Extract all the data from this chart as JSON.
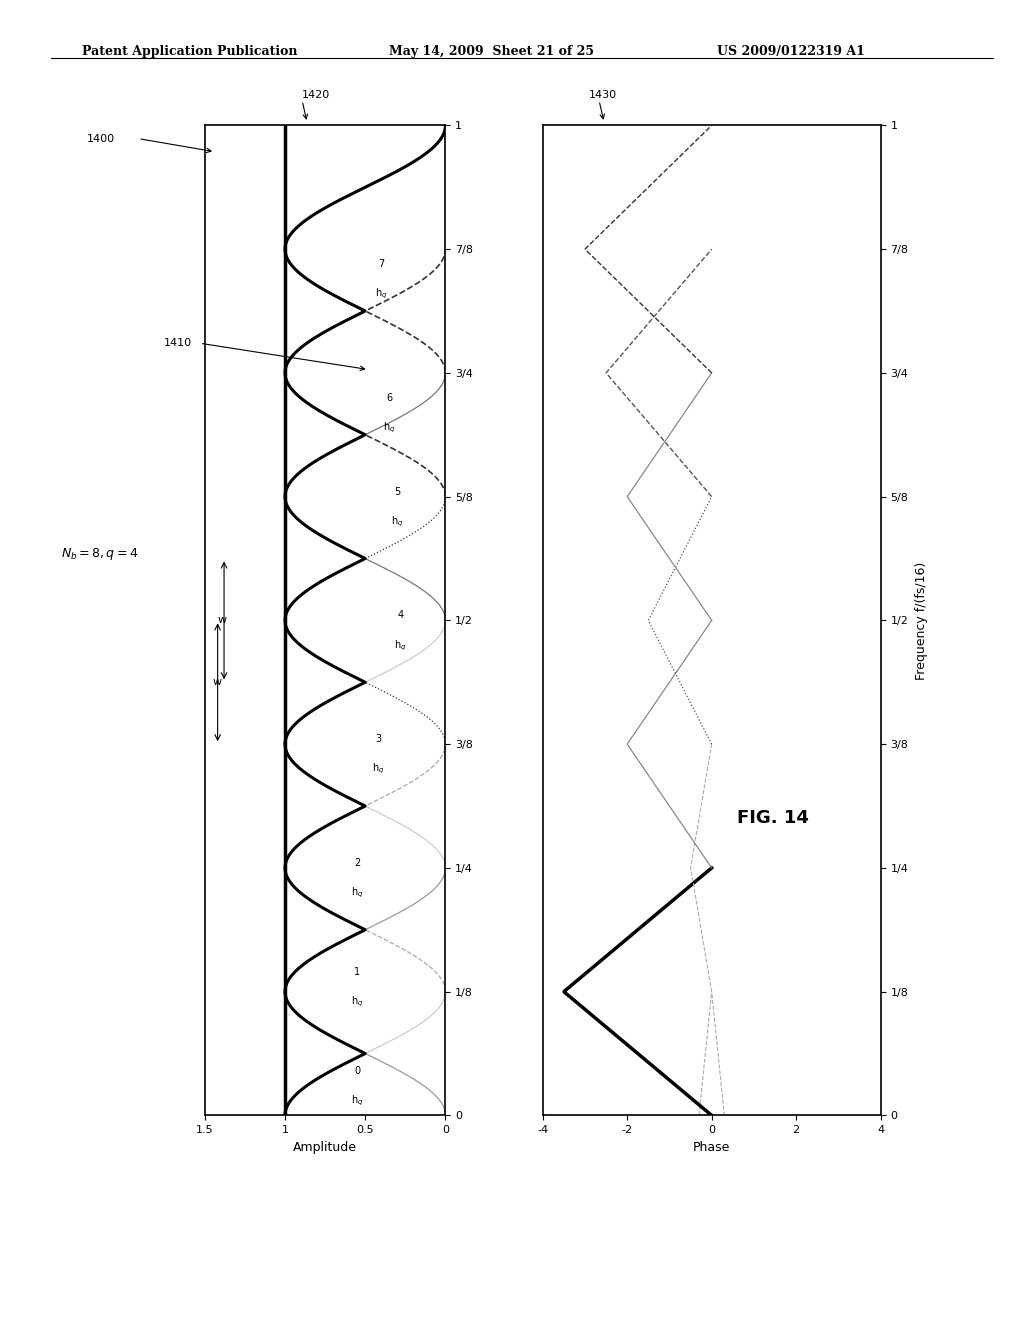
{
  "header_left": "Patent Application Publication",
  "header_mid": "May 14, 2009  Sheet 21 of 25",
  "header_right": "US 2009/0122319 A1",
  "fig_label": "FIG. 14",
  "Nb": 8,
  "label_1400": "1400",
  "label_1410": "1410",
  "label_1420": "1420",
  "label_1430": "1430",
  "freq_ticks": [
    0,
    0.125,
    0.25,
    0.375,
    0.5,
    0.625,
    0.75,
    0.875,
    1.0
  ],
  "freq_tick_labels": [
    "0",
    "1/8",
    "1/4",
    "3/8",
    "1/2",
    "5/8",
    "3/4",
    "7/8",
    "1"
  ],
  "amp_ticks": [
    0,
    0.5,
    1.0,
    1.5
  ],
  "amp_tick_labels": [
    "0",
    "0.5",
    "1",
    "1.5"
  ],
  "phase_ticks": [
    -4,
    -2,
    0,
    2,
    4
  ],
  "phase_tick_labels": [
    "-4",
    "-2",
    "0",
    "2",
    "4"
  ],
  "background": "#ffffff",
  "filter_styles": [
    {
      "color": "#cccccc",
      "lw": 0.9,
      "ls": "solid"
    },
    {
      "color": "#999999",
      "lw": 0.9,
      "ls": "solid"
    },
    {
      "color": "#aaaaaa",
      "lw": 0.9,
      "ls": "dashed"
    },
    {
      "color": "#cccccc",
      "lw": 0.9,
      "ls": "solid"
    },
    {
      "color": "#333333",
      "lw": 0.9,
      "ls": "dotted"
    },
    {
      "color": "#777777",
      "lw": 0.9,
      "ls": "solid"
    },
    {
      "color": "#333333",
      "lw": 1.2,
      "ls": "dashed"
    },
    {
      "color": "#333333",
      "lw": 1.2,
      "ls": "dashed"
    }
  ],
  "phase_styles": [
    {
      "color": "#aaaaaa",
      "lw": 0.8,
      "ls": "dashed"
    },
    {
      "color": "#000000",
      "lw": 2.5,
      "ls": "solid"
    },
    {
      "color": "#aaaaaa",
      "lw": 0.8,
      "ls": "dashed"
    },
    {
      "color": "#888888",
      "lw": 0.9,
      "ls": "solid"
    },
    {
      "color": "#555555",
      "lw": 0.9,
      "ls": "dotted"
    },
    {
      "color": "#888888",
      "lw": 0.9,
      "ls": "solid"
    },
    {
      "color": "#555555",
      "lw": 1.0,
      "ls": "dashed"
    },
    {
      "color": "#333333",
      "lw": 1.0,
      "ls": "dashed"
    }
  ]
}
